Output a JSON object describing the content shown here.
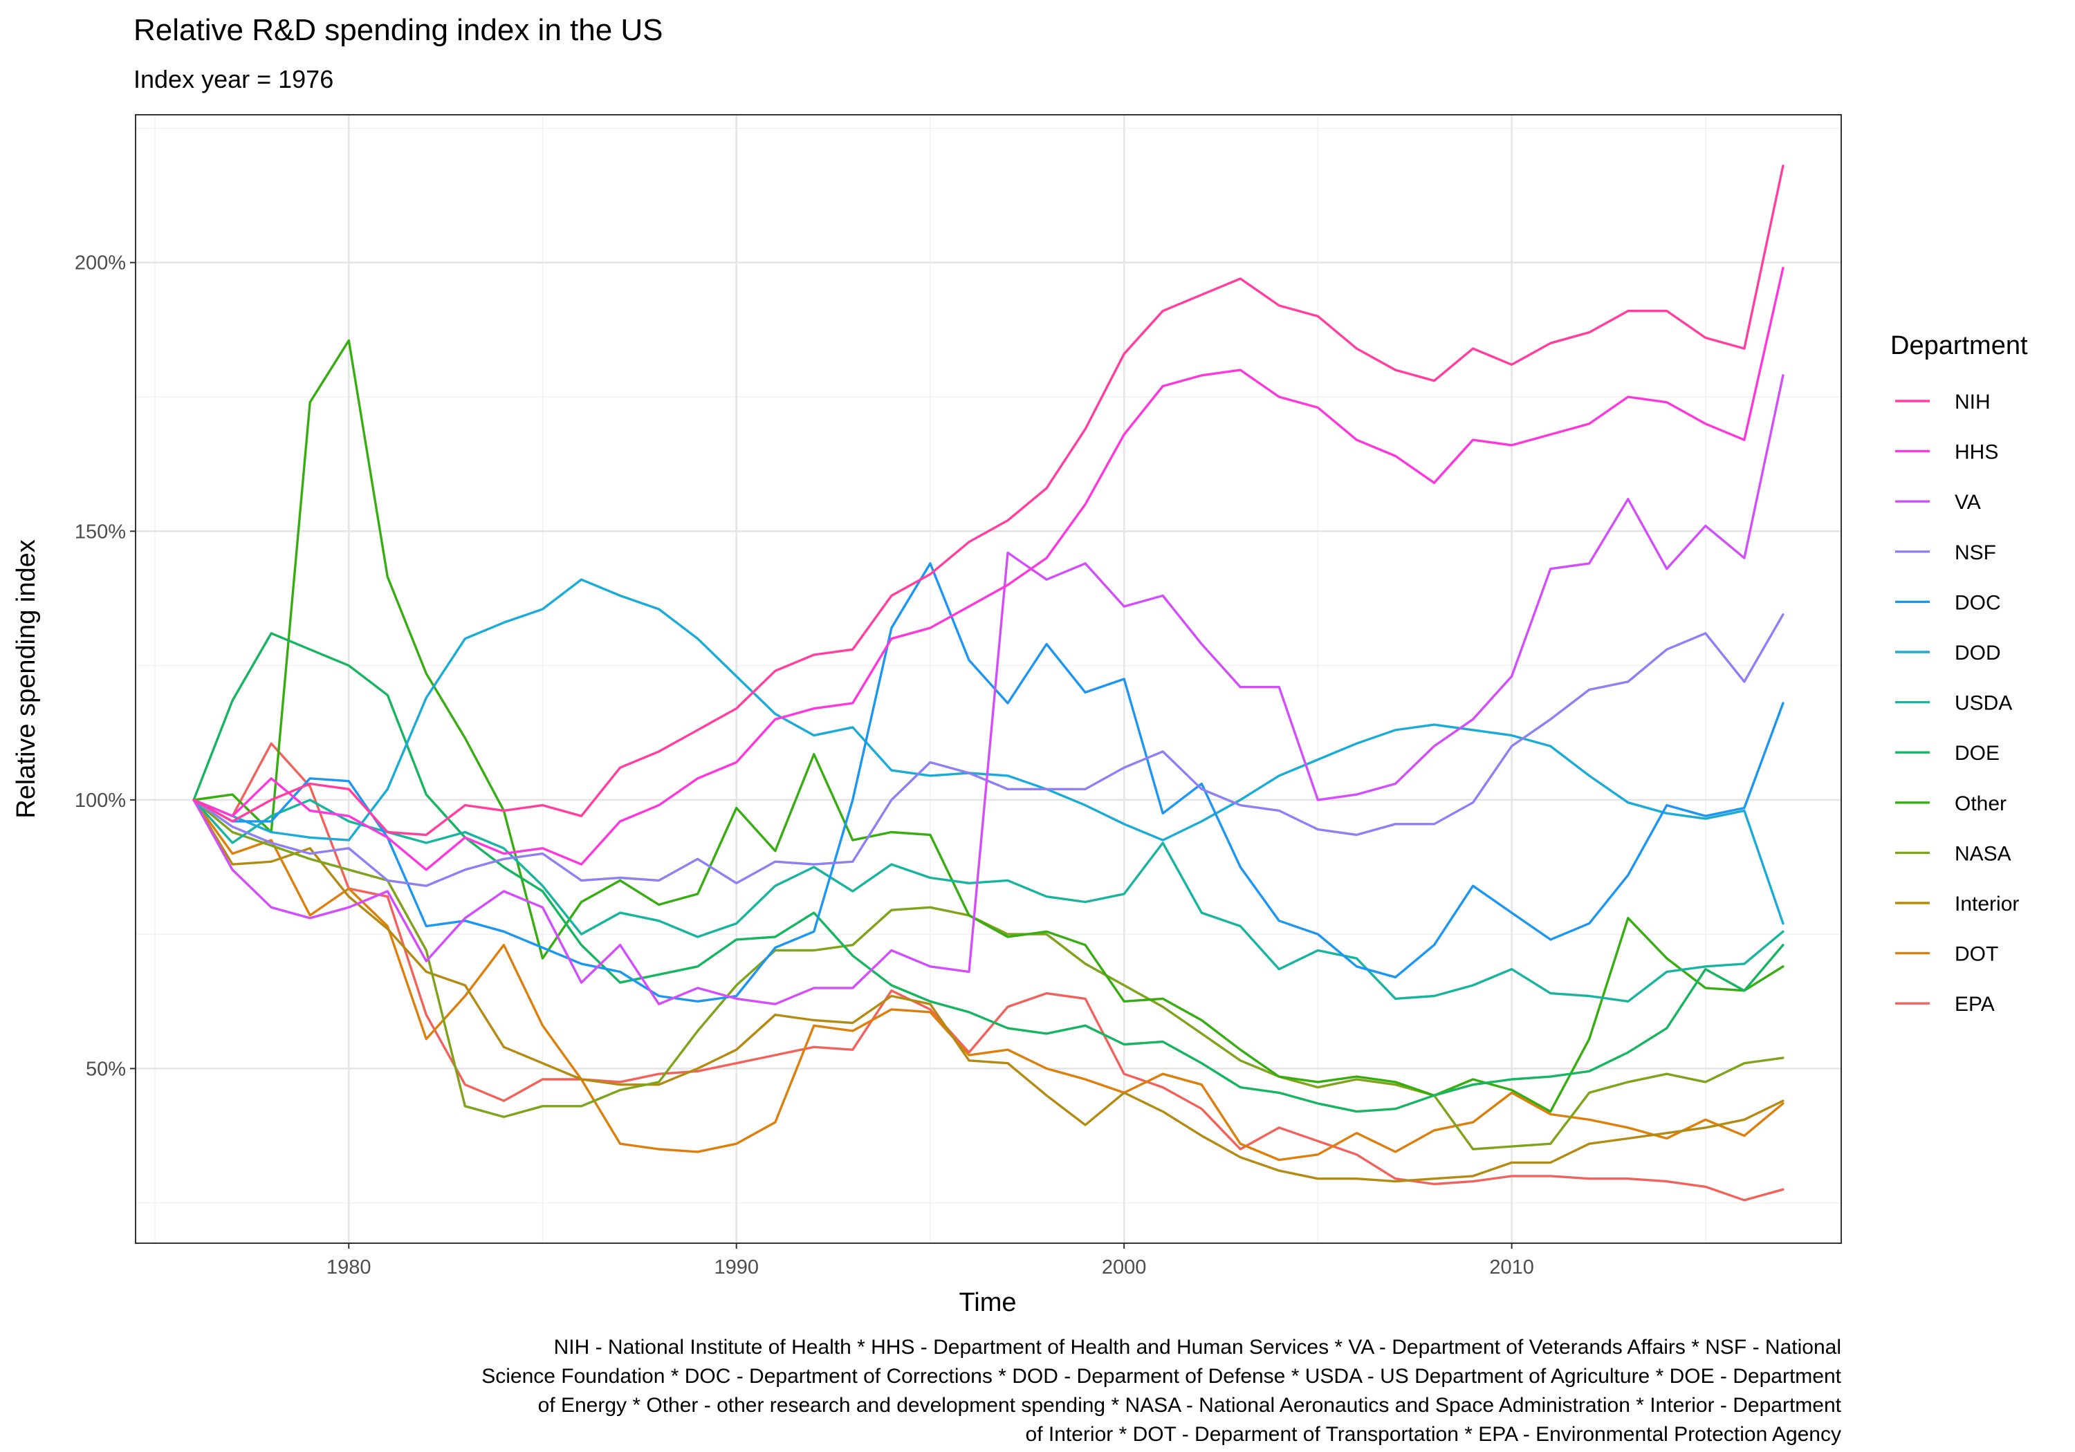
{
  "chart_data": {
    "type": "line",
    "title": "Relative R&D spending index in the US",
    "subtitle": "Index year = 1976",
    "xlabel": "Time",
    "ylabel": "Relative spending index",
    "xlim": [
      1974.5,
      2018.5
    ],
    "ylim": [
      0.175,
      2.275
    ],
    "x_ticks": [
      {
        "value": 1980,
        "label": "1980"
      },
      {
        "value": 1990,
        "label": "1990"
      },
      {
        "value": 2000,
        "label": "2000"
      },
      {
        "value": 2010,
        "label": "2010"
      }
    ],
    "y_ticks": [
      {
        "value": 0.5,
        "label": "50%"
      },
      {
        "value": 1.0,
        "label": "100%"
      },
      {
        "value": 1.5,
        "label": "150%"
      },
      {
        "value": 2.0,
        "label": "200%"
      }
    ],
    "grid": true,
    "legend_title": "Department",
    "legend_position": "right",
    "caption": [
      "NIH - National Institute of Health * HHS - Department of Health and Human Services * VA - Department of Veterands Affairs * NSF - National",
      "Science Foundation * DOC - Department of Corrections * DOD - Deparment of Defense * USDA - US Department of Agriculture * DOE - Department",
      "of Energy * Other - other research and development spending * NASA - National Aeronautics and Space Administration * Interior - Department",
      "of Interior * DOT - Deparment of Transportation * EPA - Environmental Protection Agency"
    ],
    "x": [
      1976,
      1977,
      1978,
      1979,
      1980,
      1981,
      1982,
      1983,
      1984,
      1985,
      1986,
      1987,
      1988,
      1989,
      1990,
      1991,
      1992,
      1993,
      1994,
      1995,
      1996,
      1997,
      1998,
      1999,
      2000,
      2001,
      2002,
      2003,
      2004,
      2005,
      2006,
      2007,
      2008,
      2009,
      2010,
      2011,
      2012,
      2013,
      2014,
      2015,
      2016,
      2017
    ],
    "series": [
      {
        "name": "NIH",
        "color": "#FF3EA0",
        "values": [
          1.0,
          0.96,
          1.0,
          1.03,
          1.02,
          0.94,
          0.935,
          0.99,
          0.98,
          0.99,
          0.97,
          1.06,
          1.09,
          1.13,
          1.17,
          1.24,
          1.27,
          1.28,
          1.38,
          1.42,
          1.48,
          1.52,
          1.58,
          1.69,
          1.83,
          1.91,
          1.94,
          1.97,
          1.92,
          1.9,
          1.84,
          1.8,
          1.78,
          1.84,
          1.81,
          1.85,
          1.87,
          1.91,
          1.91,
          1.86,
          1.84,
          2.18
        ]
      },
      {
        "name": "HHS",
        "color": "#FC37DB",
        "values": [
          1.0,
          0.97,
          1.04,
          0.98,
          0.97,
          0.93,
          0.87,
          0.93,
          0.9,
          0.91,
          0.88,
          0.96,
          0.99,
          1.04,
          1.07,
          1.15,
          1.17,
          1.18,
          1.3,
          1.32,
          1.36,
          1.4,
          1.45,
          1.55,
          1.68,
          1.77,
          1.79,
          1.8,
          1.75,
          1.73,
          1.67,
          1.64,
          1.59,
          1.67,
          1.66,
          1.68,
          1.7,
          1.75,
          1.74,
          1.7,
          1.67,
          1.99
        ]
      },
      {
        "name": "VA",
        "color": "#D14EFA",
        "values": [
          1.0,
          0.87,
          0.8,
          0.78,
          0.8,
          0.83,
          0.7,
          0.78,
          0.83,
          0.8,
          0.66,
          0.73,
          0.62,
          0.65,
          0.63,
          0.62,
          0.65,
          0.65,
          0.72,
          0.69,
          0.68,
          1.46,
          1.41,
          1.44,
          1.36,
          1.38,
          1.29,
          1.21,
          1.21,
          1.0,
          1.01,
          1.03,
          1.1,
          1.15,
          1.23,
          1.43,
          1.44,
          1.56,
          1.43,
          1.51,
          1.45,
          1.79
        ]
      },
      {
        "name": "NSF",
        "color": "#8E7FF4",
        "values": [
          1.0,
          0.95,
          0.92,
          0.9,
          0.91,
          0.85,
          0.84,
          0.87,
          0.89,
          0.9,
          0.85,
          0.855,
          0.85,
          0.89,
          0.845,
          0.885,
          0.88,
          0.885,
          1.0,
          1.07,
          1.05,
          1.02,
          1.02,
          1.02,
          1.06,
          1.09,
          1.02,
          0.99,
          0.98,
          0.945,
          0.935,
          0.955,
          0.955,
          0.995,
          1.1,
          1.15,
          1.205,
          1.22,
          1.28,
          1.31,
          1.22,
          1.345
        ]
      },
      {
        "name": "DOC",
        "color": "#1D96F2",
        "values": [
          1.0,
          0.96,
          0.96,
          1.04,
          1.035,
          0.93,
          0.765,
          0.775,
          0.755,
          0.725,
          0.695,
          0.68,
          0.635,
          0.625,
          0.635,
          0.725,
          0.755,
          1.0,
          1.32,
          1.44,
          1.26,
          1.18,
          1.29,
          1.2,
          1.225,
          0.975,
          1.03,
          0.875,
          0.775,
          0.75,
          0.69,
          0.67,
          0.73,
          0.84,
          0.79,
          0.74,
          0.77,
          0.86,
          0.99,
          0.97,
          0.985,
          1.18
        ]
      },
      {
        "name": "DOD",
        "color": "#1AABD6",
        "values": [
          1.0,
          0.97,
          0.94,
          0.93,
          0.925,
          1.02,
          1.19,
          1.3,
          1.33,
          1.355,
          1.41,
          1.38,
          1.355,
          1.3,
          1.23,
          1.16,
          1.12,
          1.135,
          1.055,
          1.045,
          1.05,
          1.045,
          1.02,
          0.99,
          0.955,
          0.925,
          0.96,
          1.0,
          1.045,
          1.075,
          1.105,
          1.13,
          1.14,
          1.13,
          1.12,
          1.1,
          1.045,
          0.995,
          0.975,
          0.965,
          0.98,
          0.77
        ]
      },
      {
        "name": "USDA",
        "color": "#18B4A0",
        "values": [
          1.0,
          0.92,
          0.97,
          1.0,
          0.96,
          0.94,
          0.92,
          0.94,
          0.91,
          0.84,
          0.75,
          0.79,
          0.775,
          0.745,
          0.77,
          0.84,
          0.875,
          0.83,
          0.88,
          0.855,
          0.845,
          0.85,
          0.82,
          0.81,
          0.825,
          0.92,
          0.79,
          0.765,
          0.685,
          0.72,
          0.705,
          0.63,
          0.635,
          0.655,
          0.685,
          0.64,
          0.635,
          0.625,
          0.68,
          0.69,
          0.695,
          0.755
        ]
      },
      {
        "name": "DOE",
        "color": "#17B561",
        "values": [
          1.0,
          1.185,
          1.31,
          1.28,
          1.25,
          1.195,
          1.01,
          0.93,
          0.875,
          0.83,
          0.73,
          0.66,
          0.675,
          0.69,
          0.74,
          0.745,
          0.79,
          0.71,
          0.655,
          0.625,
          0.605,
          0.575,
          0.565,
          0.58,
          0.545,
          0.55,
          0.51,
          0.465,
          0.455,
          0.435,
          0.42,
          0.425,
          0.45,
          0.47,
          0.48,
          0.485,
          0.495,
          0.53,
          0.575,
          0.685,
          0.645,
          0.73
        ]
      },
      {
        "name": "Other",
        "color": "#38AD12",
        "values": [
          1.0,
          1.01,
          0.94,
          1.74,
          1.855,
          1.415,
          1.235,
          1.115,
          0.98,
          0.705,
          0.81,
          0.85,
          0.805,
          0.825,
          0.985,
          0.905,
          1.085,
          0.925,
          0.94,
          0.935,
          0.785,
          0.745,
          0.755,
          0.73,
          0.625,
          0.63,
          0.59,
          0.535,
          0.485,
          0.475,
          0.485,
          0.475,
          0.45,
          0.48,
          0.46,
          0.42,
          0.555,
          0.78,
          0.705,
          0.65,
          0.645,
          0.69
        ]
      },
      {
        "name": "NASA",
        "color": "#7FA31A",
        "values": [
          1.0,
          0.94,
          0.915,
          0.89,
          0.87,
          0.85,
          0.72,
          0.43,
          0.41,
          0.43,
          0.43,
          0.46,
          0.475,
          0.57,
          0.655,
          0.72,
          0.72,
          0.73,
          0.795,
          0.8,
          0.785,
          0.75,
          0.75,
          0.695,
          0.655,
          0.615,
          0.565,
          0.515,
          0.485,
          0.465,
          0.48,
          0.47,
          0.45,
          0.35,
          0.355,
          0.36,
          0.455,
          0.475,
          0.49,
          0.475,
          0.51,
          0.52
        ]
      },
      {
        "name": "Interior",
        "color": "#B48B12",
        "values": [
          1.0,
          0.88,
          0.885,
          0.91,
          0.82,
          0.76,
          0.68,
          0.655,
          0.54,
          0.51,
          0.48,
          0.47,
          0.47,
          0.5,
          0.535,
          0.6,
          0.59,
          0.585,
          0.635,
          0.62,
          0.515,
          0.51,
          0.45,
          0.395,
          0.455,
          0.42,
          0.375,
          0.335,
          0.31,
          0.295,
          0.295,
          0.29,
          0.295,
          0.3,
          0.325,
          0.325,
          0.36,
          0.37,
          0.38,
          0.39,
          0.405,
          0.44
        ]
      },
      {
        "name": "DOT",
        "color": "#DC7F0C",
        "values": [
          1.0,
          0.9,
          0.925,
          0.785,
          0.835,
          0.765,
          0.555,
          0.635,
          0.73,
          0.58,
          0.48,
          0.36,
          0.35,
          0.345,
          0.36,
          0.4,
          0.58,
          0.57,
          0.61,
          0.605,
          0.525,
          0.535,
          0.5,
          0.48,
          0.455,
          0.49,
          0.47,
          0.36,
          0.33,
          0.34,
          0.38,
          0.345,
          0.385,
          0.4,
          0.455,
          0.415,
          0.405,
          0.39,
          0.37,
          0.405,
          0.375,
          0.435
        ]
      },
      {
        "name": "EPA",
        "color": "#F2625C",
        "values": [
          1.0,
          0.97,
          1.105,
          1.025,
          0.835,
          0.82,
          0.6,
          0.47,
          0.44,
          0.48,
          0.48,
          0.475,
          0.49,
          0.495,
          0.51,
          0.525,
          0.54,
          0.535,
          0.645,
          0.61,
          0.53,
          0.615,
          0.64,
          0.63,
          0.49,
          0.465,
          0.425,
          0.35,
          0.39,
          0.365,
          0.34,
          0.295,
          0.285,
          0.29,
          0.3,
          0.3,
          0.295,
          0.295,
          0.29,
          0.28,
          0.255,
          0.275
        ]
      }
    ]
  }
}
